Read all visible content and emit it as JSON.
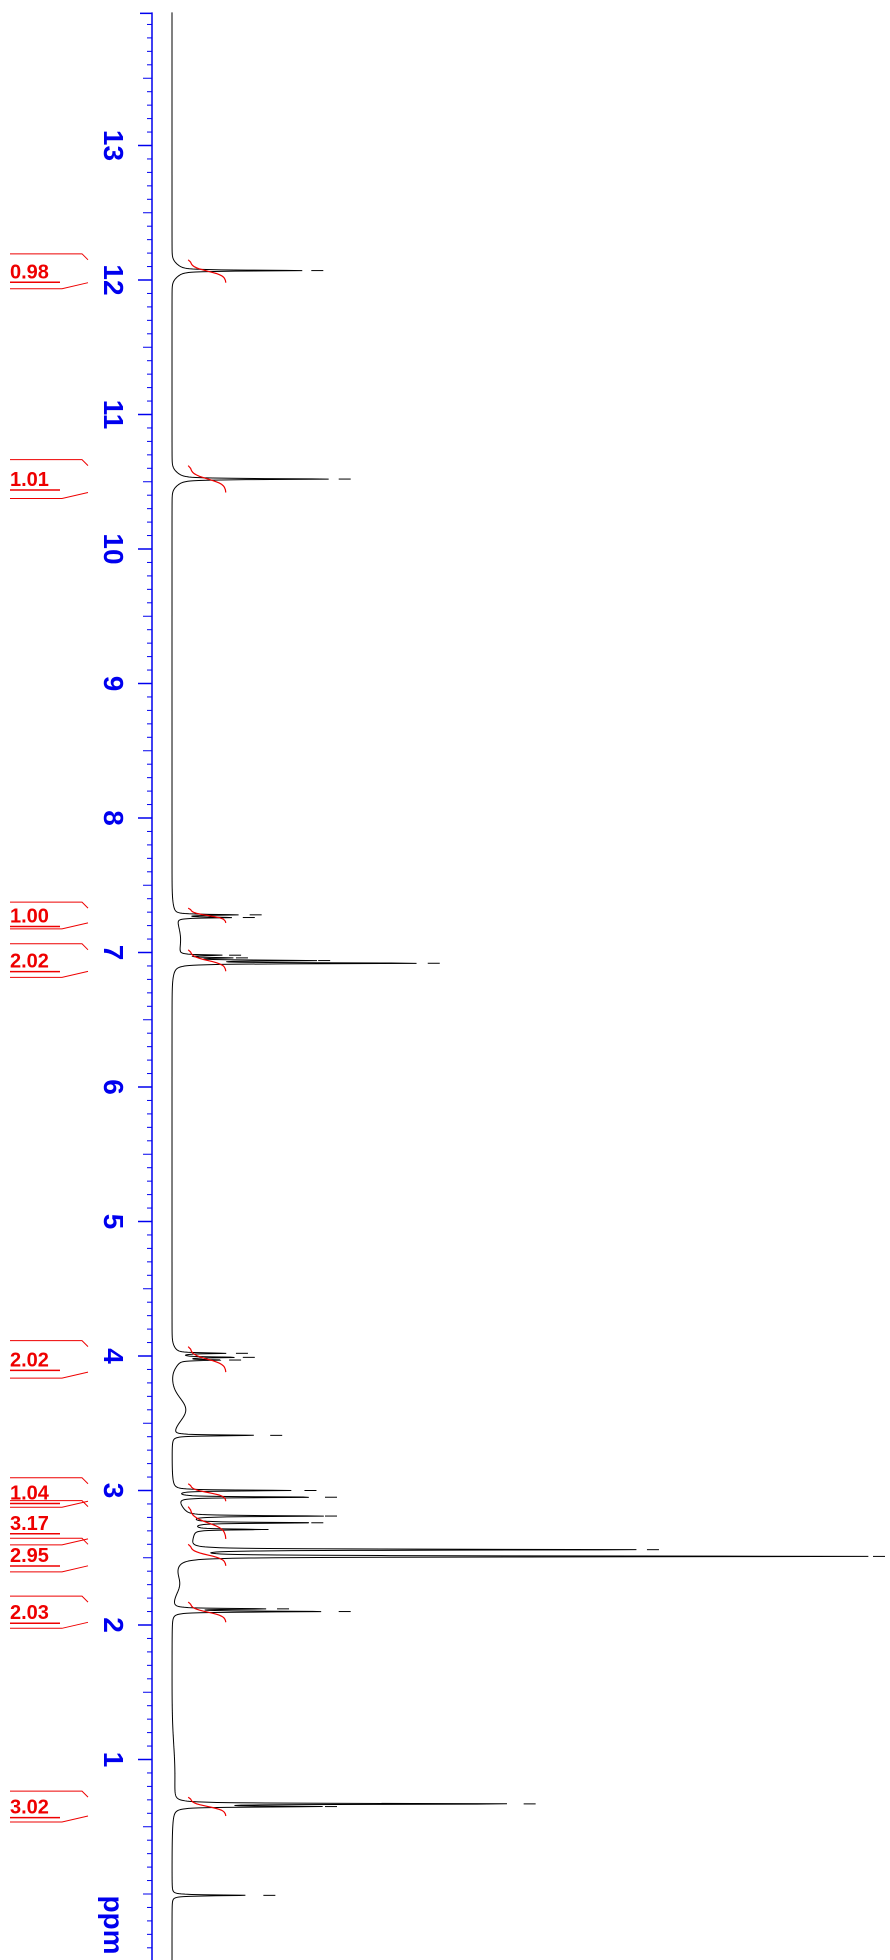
{
  "chart_data": {
    "type": "line",
    "title": "",
    "xlabel": "ppm",
    "ylabel": "",
    "x_range": [
      13.99,
      -0.58
    ],
    "x_direction": "descending",
    "grid": false,
    "axis": {
      "major_ticks": [
        13,
        12,
        11,
        10,
        9,
        8,
        7,
        6,
        5,
        4,
        3,
        2,
        1
      ],
      "minor_tick_step": 0.1,
      "color": "#0000ee"
    },
    "spectrum_color": "#000000",
    "peaks": [
      {
        "shift": 12.07,
        "height": 0.18
      },
      {
        "shift": 10.52,
        "height": 0.22
      },
      {
        "shift": 7.28,
        "height": 0.09
      },
      {
        "shift": 7.26,
        "height": 0.08
      },
      {
        "shift": 6.98,
        "height": 0.06
      },
      {
        "shift": 6.96,
        "height": 0.07
      },
      {
        "shift": 6.94,
        "height": 0.19
      },
      {
        "shift": 6.92,
        "height": 0.35
      },
      {
        "shift": 4.02,
        "height": 0.07
      },
      {
        "shift": 3.99,
        "height": 0.08
      },
      {
        "shift": 3.97,
        "height": 0.06
      },
      {
        "shift": 3.41,
        "height": 0.12
      },
      {
        "shift": 3.0,
        "height": 0.17
      },
      {
        "shift": 2.95,
        "height": 0.2
      },
      {
        "shift": 2.81,
        "height": 0.2
      },
      {
        "shift": 2.76,
        "height": 0.18
      },
      {
        "shift": 2.71,
        "height": 0.1
      },
      {
        "shift": 2.56,
        "height": 0.67
      },
      {
        "shift": 2.51,
        "height": 1.0
      },
      {
        "shift": 2.12,
        "height": 0.13
      },
      {
        "shift": 2.1,
        "height": 0.22
      },
      {
        "shift": 0.67,
        "height": 0.49
      },
      {
        "shift": 0.65,
        "height": 0.2
      },
      {
        "shift": -0.01,
        "height": 0.11
      }
    ],
    "integrals": [
      {
        "label": "0.98",
        "from": 12.15,
        "to": 11.98
      },
      {
        "label": "1.01",
        "from": 10.62,
        "to": 10.42
      },
      {
        "label": "1.00",
        "from": 7.33,
        "to": 7.22
      },
      {
        "label": "2.02",
        "from": 7.02,
        "to": 6.86
      },
      {
        "label": "2.02",
        "from": 4.07,
        "to": 3.88
      },
      {
        "label": "1.04",
        "from": 3.05,
        "to": 2.92
      },
      {
        "label": "3.17",
        "from": 2.88,
        "to": 2.64
      },
      {
        "label": "2.95",
        "from": 2.6,
        "to": 2.44
      },
      {
        "label": "2.03",
        "from": 2.17,
        "to": 2.02
      },
      {
        "label": "3.02",
        "from": 0.72,
        "to": 0.58
      }
    ],
    "integral_color": "#ee0000"
  }
}
